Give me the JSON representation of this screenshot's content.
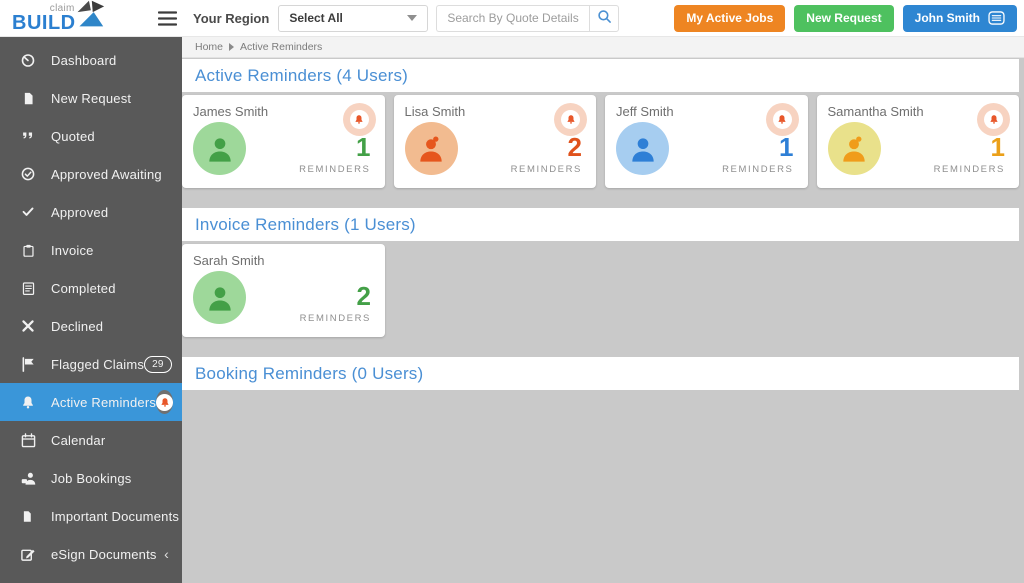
{
  "topbar": {
    "logo": {
      "top": "claim",
      "main": "BUILD"
    },
    "region_label": "Your Region",
    "region_select_value": "Select All",
    "search_placeholder": "Search By Quote Details",
    "buttons": {
      "active_jobs": "My Active Jobs",
      "new_request": "New Request",
      "user": "John Smith"
    },
    "colors": {
      "active_jobs_bg": "#ee8522",
      "new_request_bg": "#4ec15f",
      "user_bg": "#2e86d2",
      "logo_blue": "#2b7fd0",
      "search_icon": "#4a90d2"
    }
  },
  "breadcrumb": {
    "items": [
      "Home",
      "Active Reminders"
    ]
  },
  "sidebar": {
    "colors": {
      "bg": "#595959",
      "active_bg": "#3a96d9"
    },
    "items": [
      {
        "label": "Dashboard",
        "icon": "gauge"
      },
      {
        "label": "New Request",
        "icon": "file-plus"
      },
      {
        "label": "Quoted",
        "icon": "quote"
      },
      {
        "label": "Approved Awaiting",
        "icon": "clock-check"
      },
      {
        "label": "Approved",
        "icon": "check"
      },
      {
        "label": "Invoice",
        "icon": "clipboard"
      },
      {
        "label": "Completed",
        "icon": "doc-lines"
      },
      {
        "label": "Declined",
        "icon": "x"
      },
      {
        "label": "Flagged Claims",
        "icon": "flag",
        "badge": "29"
      },
      {
        "label": "Active Reminders",
        "icon": "bell",
        "active": true,
        "notify": true
      },
      {
        "label": "Calendar",
        "icon": "calendar"
      },
      {
        "label": "Job Bookings",
        "icon": "user-briefcase"
      },
      {
        "label": "Important Documents",
        "icon": "file"
      },
      {
        "label": "eSign Documents",
        "icon": "pen-square",
        "chevron": "‹"
      }
    ]
  },
  "main": {
    "heading_color": "#4a8fd4",
    "sections": [
      {
        "title": "Active Reminders (4 Users)",
        "cards": [
          {
            "name": "James Smith",
            "count": "1",
            "label": "REMINDERS",
            "gender": "male",
            "avatar_bg": "#9ed89a",
            "avatar_fg": "#43a047",
            "count_color": "#43a047",
            "bell_badge": true
          },
          {
            "name": "Lisa Smith",
            "count": "2",
            "label": "REMINDERS",
            "gender": "female",
            "avatar_bg": "#f2bb90",
            "avatar_fg": "#e6561d",
            "count_color": "#e0521c",
            "bell_badge": true
          },
          {
            "name": "Jeff Smith",
            "count": "1",
            "label": "REMINDERS",
            "gender": "male",
            "avatar_bg": "#a6cdf0",
            "avatar_fg": "#2e7fd6",
            "count_color": "#2e7fd6",
            "bell_badge": true
          },
          {
            "name": "Samantha Smith",
            "count": "1",
            "label": "REMINDERS",
            "gender": "female",
            "avatar_bg": "#e9e18b",
            "avatar_fg": "#f09c1b",
            "count_color": "#eba019",
            "bell_badge": true
          }
        ]
      },
      {
        "title": "Invoice Reminders (1 Users)",
        "cards": [
          {
            "name": "Sarah Smith",
            "count": "2",
            "label": "REMINDERS",
            "gender": "male",
            "avatar_bg": "#9ed89a",
            "avatar_fg": "#43a047",
            "count_color": "#43a047",
            "bell_badge": false
          }
        ]
      },
      {
        "title": "Booking Reminders (0 Users)",
        "cards": []
      }
    ]
  }
}
